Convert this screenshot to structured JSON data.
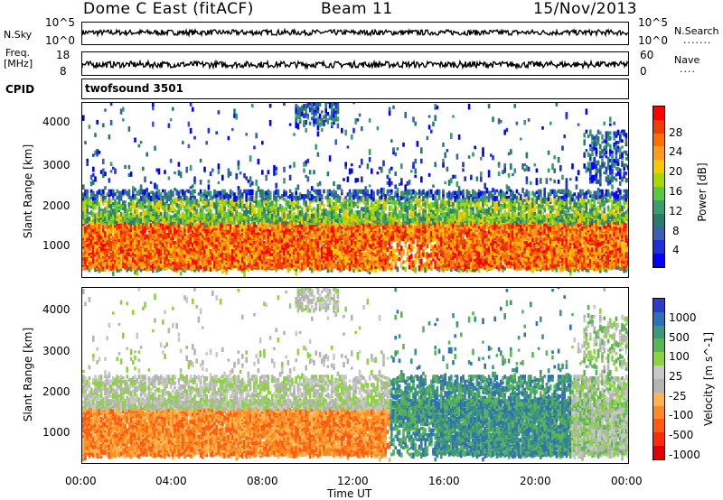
{
  "header": {
    "station": "Dome C East (fitACF)",
    "beam": "Beam 11",
    "date": "15/Nov/2013"
  },
  "top_panels": {
    "nsky_label": "N.Sky",
    "nsky_ticks": [
      "10^5",
      "10^0"
    ],
    "nsearch_label": "N.Search",
    "freq_label": "Freq.",
    "freq_unit": "[MHz]",
    "freq_ticks": [
      "18",
      "8"
    ],
    "nave_label": "Nave",
    "nave_ticks": [
      "60",
      "0"
    ],
    "cpid_label": "CPID",
    "cpid_value": "twofsound 3501"
  },
  "chart_data": [
    {
      "type": "heatmap",
      "title": "",
      "ylabel": "Slant Range [km]",
      "yticks": [
        "4000",
        "3000",
        "2000",
        "1000"
      ],
      "ylim": [
        180,
        4500
      ],
      "xlim": [
        0,
        24
      ],
      "colorbar_label": "Power [dB]",
      "colorbar_ticks": [
        "28",
        "24",
        "20",
        "16",
        "12",
        "8",
        "4"
      ],
      "colorbar_colors": [
        "#ff0000",
        "#f03c00",
        "#ff6e00",
        "#ff9a1a",
        "#f5c800",
        "#a8d800",
        "#5cc83c",
        "#3c9c6c",
        "#2a7c6a",
        "#3a60b0",
        "#2030d8",
        "#0000ff"
      ],
      "scatter_regions_hours": [
        {
          "x": [
            0,
            24
          ],
          "y": [
            400,
            1600
          ],
          "level": "high"
        },
        {
          "x": [
            0,
            24
          ],
          "y": [
            1600,
            2300
          ],
          "level": "low"
        },
        {
          "x": [
            9.5,
            11
          ],
          "y": [
            4000,
            4500
          ],
          "level": "low"
        }
      ]
    },
    {
      "type": "heatmap",
      "title": "",
      "ylabel": "Slant Range [km]",
      "yticks": [
        "4000",
        "3000",
        "2000",
        "1000"
      ],
      "ylim": [
        180,
        4500
      ],
      "xlim": [
        0,
        24
      ],
      "colorbar_label": "Velocity [m s^-1]",
      "colorbar_ticks": [
        "1000",
        "500",
        "100",
        "25",
        "-25",
        "-100",
        "-500",
        "-1000"
      ],
      "colorbar_colors": [
        "#2a3ec8",
        "#3070b8",
        "#3c9878",
        "#5cb458",
        "#8cd43c",
        "#c8c8c8",
        "#b4b4b4",
        "#ffb450",
        "#ff8c1e",
        "#ff5a14",
        "#ff2a0a",
        "#e00000"
      ],
      "xlabel": "Time UT",
      "xticks": [
        "00:00",
        "04:00",
        "08:00",
        "12:00",
        "16:00",
        "20:00",
        "00:00"
      ]
    }
  ]
}
